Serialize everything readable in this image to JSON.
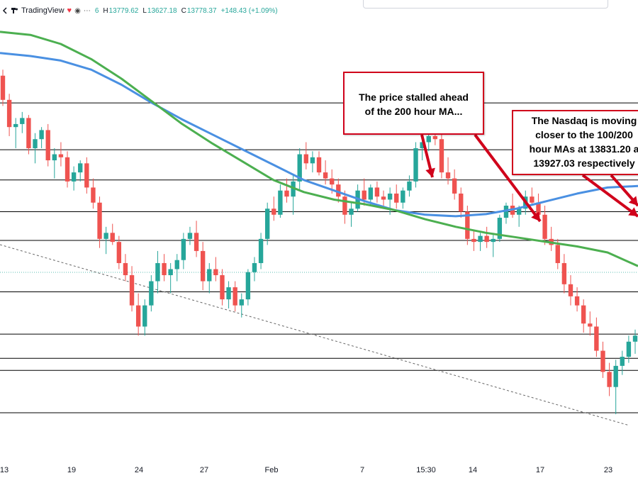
{
  "header": {
    "brand": "TradingView",
    "ohlc_open_fragment": "6",
    "high_label": "H",
    "high_value": "13779.62",
    "low_label": "L",
    "low_value": "13627.18",
    "close_label": "C",
    "close_value": "13778.37",
    "change": "+148.43 (+1.09%)"
  },
  "annotations": [
    {
      "text": "The price stalled ahead\nof the 200 hour MA..."
    },
    {
      "text": "The Nasdaq is moving\ncloser to the 100/200\nhour MAs at 13831.20 a\n13927.03 respectively"
    }
  ],
  "colors": {
    "up": "#26a69a",
    "down": "#ef5350",
    "ma100": "#4a90e2",
    "ma200": "#4caf50",
    "callout_border": "#d0021b",
    "level_line": "#000000"
  },
  "chart_data": {
    "type": "candlestick",
    "x_tick_labels": [
      "13",
      "19",
      "24",
      "27",
      "Feb",
      "7",
      "15:30",
      "14",
      "17",
      "23"
    ],
    "y_range": [
      13150,
      14600
    ],
    "horizontal_levels": [
      14330,
      14175,
      14075,
      13970,
      13875,
      13705,
      13565,
      13485,
      13445,
      13305
    ],
    "series": [
      {
        "values": [
          14495,
          14485,
          14470,
          14440,
          14390,
          14330,
          14275,
          14225,
          14175,
          14125,
          14075,
          14040,
          14005,
          13975,
          13960,
          13955,
          13962,
          13980,
          14005,
          14030,
          14050,
          14055
        ]
      },
      {
        "values": [
          14565,
          14555,
          14525,
          14475,
          14410,
          14335,
          14260,
          14195,
          14135,
          14075,
          14035,
          14010,
          13995,
          13975,
          13945,
          13920,
          13900,
          13885,
          13870,
          13855,
          13835,
          13790
        ]
      }
    ],
    "candles": [
      [
        14420,
        14440,
        14320,
        14340
      ],
      [
        14340,
        14360,
        14220,
        14250
      ],
      [
        14250,
        14280,
        14180,
        14260
      ],
      [
        14260,
        14300,
        14230,
        14280
      ],
      [
        14280,
        14290,
        14160,
        14180
      ],
      [
        14180,
        14230,
        14130,
        14210
      ],
      [
        14210,
        14250,
        14180,
        14240
      ],
      [
        14240,
        14260,
        14120,
        14140
      ],
      [
        14140,
        14180,
        14080,
        14160
      ],
      [
        14160,
        14200,
        14120,
        14150
      ],
      [
        14150,
        14170,
        14050,
        14070
      ],
      [
        14070,
        14120,
        14040,
        14100
      ],
      [
        14100,
        14140,
        14070,
        14130
      ],
      [
        14130,
        14150,
        14030,
        14050
      ],
      [
        14050,
        14080,
        13980,
        14000
      ],
      [
        14000,
        14020,
        13850,
        13880
      ],
      [
        13880,
        13920,
        13830,
        13900
      ],
      [
        13900,
        13930,
        13860,
        13870
      ],
      [
        13870,
        13890,
        13780,
        13800
      ],
      [
        13800,
        13830,
        13740,
        13760
      ],
      [
        13760,
        13790,
        13640,
        13660
      ],
      [
        13660,
        13700,
        13560,
        13590
      ],
      [
        13590,
        13680,
        13560,
        13660
      ],
      [
        13660,
        13760,
        13640,
        13740
      ],
      [
        13740,
        13840,
        13700,
        13800
      ],
      [
        13800,
        13830,
        13740,
        13760
      ],
      [
        13760,
        13800,
        13700,
        13780
      ],
      [
        13780,
        13830,
        13740,
        13810
      ],
      [
        13810,
        13900,
        13780,
        13880
      ],
      [
        13880,
        13920,
        13860,
        13900
      ],
      [
        13900,
        13940,
        13820,
        13840
      ],
      [
        13840,
        13870,
        13710,
        13740
      ],
      [
        13740,
        13800,
        13700,
        13780
      ],
      [
        13780,
        13820,
        13740,
        13760
      ],
      [
        13760,
        13780,
        13660,
        13680
      ],
      [
        13680,
        13740,
        13650,
        13720
      ],
      [
        13720,
        13740,
        13640,
        13660
      ],
      [
        13660,
        13700,
        13620,
        13680
      ],
      [
        13680,
        13780,
        13660,
        13770
      ],
      [
        13770,
        13820,
        13740,
        13800
      ],
      [
        13800,
        13900,
        13780,
        13880
      ],
      [
        13880,
        14000,
        13860,
        13980
      ],
      [
        13980,
        14020,
        13940,
        13960
      ],
      [
        13960,
        14060,
        13950,
        14040
      ],
      [
        14040,
        14080,
        14000,
        14020
      ],
      [
        14020,
        14090,
        13960,
        14070
      ],
      [
        14070,
        14180,
        14040,
        14160
      ],
      [
        14160,
        14200,
        14110,
        14130
      ],
      [
        14130,
        14170,
        14100,
        14150
      ],
      [
        14150,
        14170,
        14090,
        14100
      ],
      [
        14100,
        14140,
        14060,
        14080
      ],
      [
        14080,
        14110,
        14030,
        14060
      ],
      [
        14060,
        14080,
        14000,
        14020
      ],
      [
        14020,
        14040,
        13930,
        13960
      ],
      [
        13960,
        14000,
        13920,
        13980
      ],
      [
        13980,
        14060,
        13970,
        14040
      ],
      [
        14040,
        14080,
        13990,
        14010
      ],
      [
        14010,
        14060,
        13990,
        14050
      ],
      [
        14050,
        14070,
        14000,
        14020
      ],
      [
        14020,
        14040,
        13990,
        14010
      ],
      [
        14010,
        14050,
        13960,
        14030
      ],
      [
        14030,
        14060,
        13980,
        14000
      ],
      [
        14000,
        14050,
        13980,
        14040
      ],
      [
        14040,
        14090,
        14020,
        14070
      ],
      [
        14070,
        14200,
        14050,
        14180
      ],
      [
        14180,
        14220,
        14140,
        14200
      ],
      [
        14200,
        14240,
        14170,
        14220
      ],
      [
        14220,
        14250,
        14190,
        14210
      ],
      [
        14210,
        14230,
        14080,
        14100
      ],
      [
        14100,
        14150,
        14060,
        14080
      ],
      [
        14080,
        14110,
        14010,
        14030
      ],
      [
        14030,
        14050,
        13950,
        13970
      ],
      [
        13970,
        13990,
        13860,
        13880
      ],
      [
        13880,
        13910,
        13840,
        13870
      ],
      [
        13870,
        13900,
        13840,
        13890
      ],
      [
        13890,
        13920,
        13850,
        13870
      ],
      [
        13870,
        13900,
        13820,
        13880
      ],
      [
        13880,
        13960,
        13870,
        13950
      ],
      [
        13950,
        14000,
        13930,
        13990
      ],
      [
        13990,
        14030,
        13950,
        13960
      ],
      [
        13960,
        13990,
        13920,
        13980
      ],
      [
        13980,
        14040,
        13960,
        14020
      ],
      [
        14020,
        14050,
        13990,
        14000
      ],
      [
        14000,
        14030,
        13940,
        13960
      ],
      [
        13960,
        13990,
        13860,
        13880
      ],
      [
        13880,
        13920,
        13840,
        13860
      ],
      [
        13860,
        13880,
        13780,
        13800
      ],
      [
        13800,
        13830,
        13700,
        13730
      ],
      [
        13730,
        13760,
        13660,
        13690
      ],
      [
        13690,
        13720,
        13640,
        13660
      ],
      [
        13660,
        13680,
        13570,
        13600
      ],
      [
        13600,
        13640,
        13560,
        13590
      ],
      [
        13590,
        13620,
        13490,
        13510
      ],
      [
        13510,
        13540,
        13420,
        13440
      ],
      [
        13440,
        13470,
        13360,
        13390
      ],
      [
        13390,
        13480,
        13300,
        13460
      ],
      [
        13460,
        13510,
        13430,
        13490
      ],
      [
        13490,
        13560,
        13470,
        13540
      ],
      [
        13540,
        13580,
        13500,
        13560
      ]
    ]
  }
}
